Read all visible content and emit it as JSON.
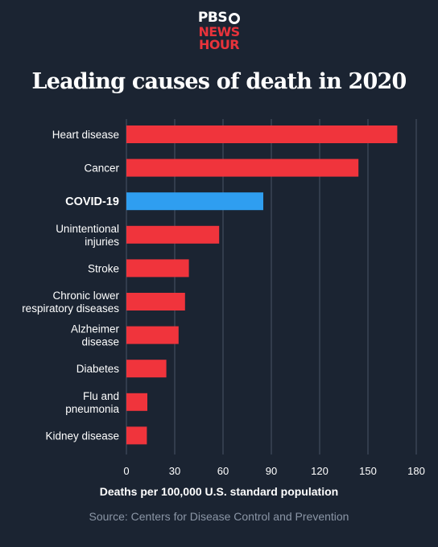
{
  "logo": {
    "line1": "PBS",
    "line2": "NEWS",
    "line3": "HOUR"
  },
  "title": "Leading causes of death in 2020",
  "source": "Source: Centers for Disease Control and Prevention",
  "colors": {
    "background": "#1b2432",
    "bar_default": "#f0343c",
    "bar_highlight": "#2f9ef0",
    "grid": "#4a5566",
    "source_text": "#8b96a6"
  },
  "chart_data": {
    "type": "bar",
    "orientation": "horizontal",
    "title": "Leading causes of death in 2020",
    "xlabel": "Deaths per 100,000 U.S. standard population",
    "ylabel": "",
    "xlim": [
      0,
      180
    ],
    "xticks": [
      0,
      30,
      60,
      90,
      120,
      150,
      180
    ],
    "grid": "vertical",
    "highlight": "COVID-19",
    "categories": [
      "Heart disease",
      "Cancer",
      "COVID-19",
      "Unintentional injuries",
      "Stroke",
      "Chronic lower respiratory diseases",
      "Alzheimer disease",
      "Diabetes",
      "Flu and pneumonia",
      "Kidney disease"
    ],
    "category_lines": [
      [
        "Heart disease"
      ],
      [
        "Cancer"
      ],
      [
        "COVID-19"
      ],
      [
        "Unintentional",
        "injuries"
      ],
      [
        "Stroke"
      ],
      [
        "Chronic lower",
        "respiratory diseases"
      ],
      [
        "Alzheimer",
        "disease"
      ],
      [
        "Diabetes"
      ],
      [
        "Flu and",
        "pneumonia"
      ],
      [
        "Kidney disease"
      ]
    ],
    "values": [
      168.2,
      144.1,
      85.0,
      57.6,
      38.8,
      36.4,
      32.4,
      24.8,
      13.0,
      12.7
    ]
  }
}
